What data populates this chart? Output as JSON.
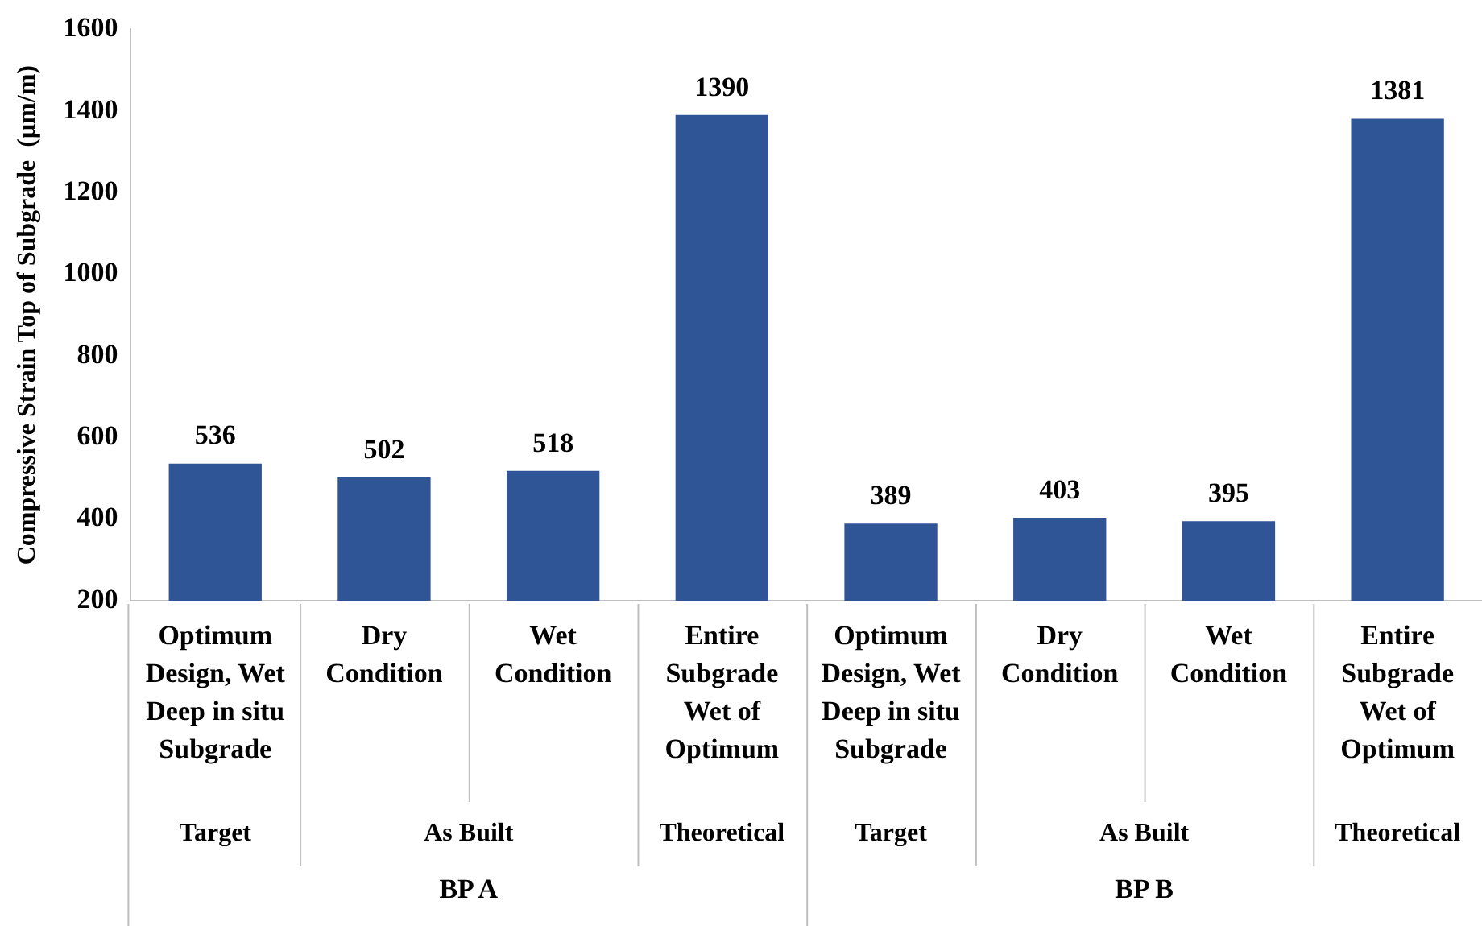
{
  "chart_data": {
    "type": "bar",
    "ylabel": "Compressive Strain Top of Subgrade  (μm/m)",
    "categories": [
      "Optimum Design, Wet Deep in situ Subgrade",
      "Dry Condition",
      "Wet Condition",
      "Entire Subgrade Wet of Optimum",
      "Optimum Design, Wet Deep in situ Subgrade",
      "Dry Condition",
      "Wet Condition",
      "Entire Subgrade Wet of Optimum"
    ],
    "values": [
      536,
      502,
      518,
      1390,
      389,
      403,
      395,
      1381
    ],
    "color": "#2f5597",
    "ylim": [
      200,
      1600
    ],
    "yticks": [
      200,
      400,
      600,
      800,
      1000,
      1200,
      1400,
      1600
    ],
    "grid": false,
    "legend": false,
    "data_labels": true,
    "annotations": [
      "Target",
      "As Built",
      "Theoretical",
      "Target",
      "As Built",
      "Theoretical",
      "BP A",
      "BP B"
    ]
  }
}
